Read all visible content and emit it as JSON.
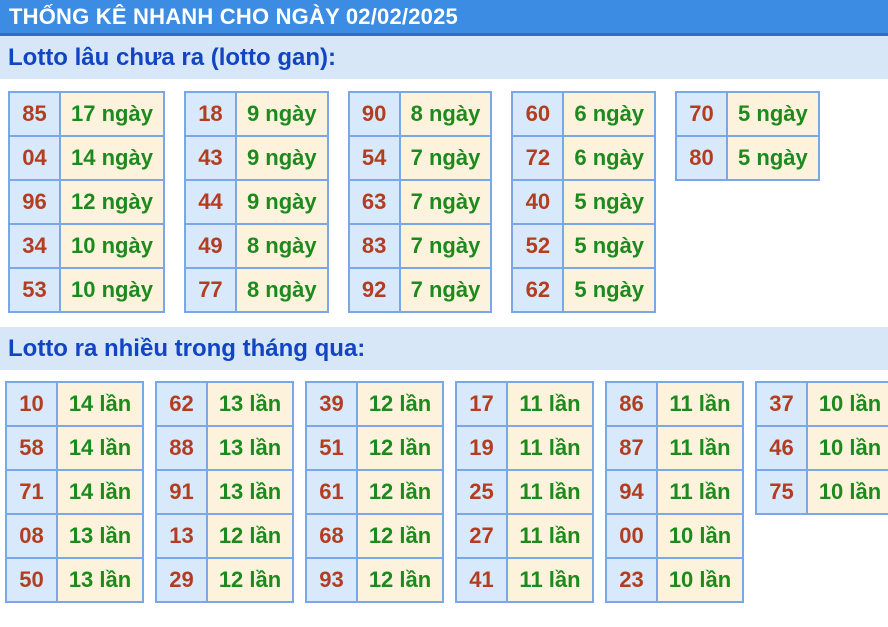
{
  "title_bar": {
    "text": "THỐNG KÊ NHANH CHO NGÀY 02/02/2025"
  },
  "colors": {
    "title_bg": "#3b8ce2",
    "title_border": "#2e70c2",
    "band_bg": "#d7e7f8",
    "band_text": "#1245c4",
    "cell_border": "#7aa7e8",
    "number_bg": "#d9e9fc",
    "number_text": "#b33d20",
    "value_bg": "#fdf3dd",
    "value_text": "#1d8a1d"
  },
  "sections": [
    {
      "heading": "Lotto lâu chưa ra (lotto gan):",
      "unit": "ngày",
      "groups": [
        [
          {
            "number": "85",
            "count": "17 ngày"
          },
          {
            "number": "04",
            "count": "14 ngày"
          },
          {
            "number": "96",
            "count": "12 ngày"
          },
          {
            "number": "34",
            "count": "10 ngày"
          },
          {
            "number": "53",
            "count": "10 ngày"
          }
        ],
        [
          {
            "number": "18",
            "count": "9 ngày"
          },
          {
            "number": "43",
            "count": "9 ngày"
          },
          {
            "number": "44",
            "count": "9 ngày"
          },
          {
            "number": "49",
            "count": "8 ngày"
          },
          {
            "number": "77",
            "count": "8 ngày"
          }
        ],
        [
          {
            "number": "90",
            "count": "8 ngày"
          },
          {
            "number": "54",
            "count": "7 ngày"
          },
          {
            "number": "63",
            "count": "7 ngày"
          },
          {
            "number": "83",
            "count": "7 ngày"
          },
          {
            "number": "92",
            "count": "7 ngày"
          }
        ],
        [
          {
            "number": "60",
            "count": "6 ngày"
          },
          {
            "number": "72",
            "count": "6 ngày"
          },
          {
            "number": "40",
            "count": "5 ngày"
          },
          {
            "number": "52",
            "count": "5 ngày"
          },
          {
            "number": "62",
            "count": "5 ngày"
          }
        ],
        [
          {
            "number": "70",
            "count": "5 ngày"
          },
          {
            "number": "80",
            "count": "5 ngày"
          }
        ]
      ]
    },
    {
      "heading": "Lotto ra nhiều trong tháng qua:",
      "unit": "lần",
      "groups": [
        [
          {
            "number": "10",
            "count": "14 lần"
          },
          {
            "number": "58",
            "count": "14 lần"
          },
          {
            "number": "71",
            "count": "14 lần"
          },
          {
            "number": "08",
            "count": "13 lần"
          },
          {
            "number": "50",
            "count": "13 lần"
          }
        ],
        [
          {
            "number": "62",
            "count": "13 lần"
          },
          {
            "number": "88",
            "count": "13 lần"
          },
          {
            "number": "91",
            "count": "13 lần"
          },
          {
            "number": "13",
            "count": "12 lần"
          },
          {
            "number": "29",
            "count": "12 lần"
          }
        ],
        [
          {
            "number": "39",
            "count": "12 lần"
          },
          {
            "number": "51",
            "count": "12 lần"
          },
          {
            "number": "61",
            "count": "12 lần"
          },
          {
            "number": "68",
            "count": "12 lần"
          },
          {
            "number": "93",
            "count": "12 lần"
          }
        ],
        [
          {
            "number": "17",
            "count": "11 lần"
          },
          {
            "number": "19",
            "count": "11 lần"
          },
          {
            "number": "25",
            "count": "11 lần"
          },
          {
            "number": "27",
            "count": "11 lần"
          },
          {
            "number": "41",
            "count": "11 lần"
          }
        ],
        [
          {
            "number": "86",
            "count": "11 lần"
          },
          {
            "number": "87",
            "count": "11 lần"
          },
          {
            "number": "94",
            "count": "11 lần"
          },
          {
            "number": "00",
            "count": "10 lần"
          },
          {
            "number": "23",
            "count": "10 lần"
          }
        ],
        [
          {
            "number": "37",
            "count": "10 lần"
          },
          {
            "number": "46",
            "count": "10 lần"
          },
          {
            "number": "75",
            "count": "10 lần"
          }
        ]
      ]
    }
  ]
}
